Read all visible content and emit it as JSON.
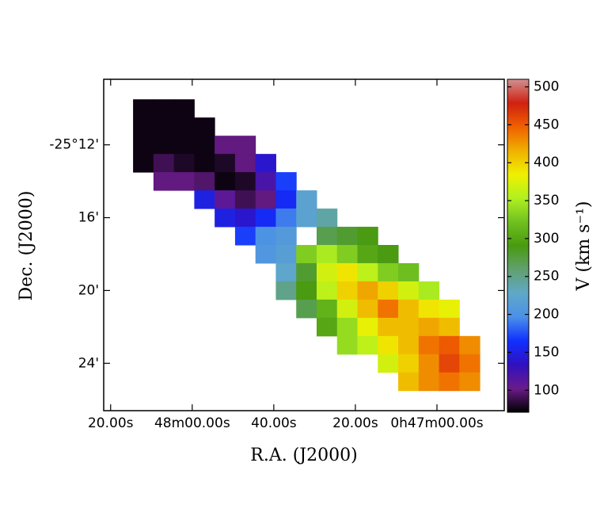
{
  "chart_data": {
    "type": "heatmap",
    "xlabel": "R.A. (J2000)",
    "ylabel": "Dec. (J2000)",
    "colorbar_label": "V (km s⁻¹)",
    "x": [
      72,
      67,
      62,
      57,
      52,
      47,
      42,
      37,
      32,
      27,
      22,
      17,
      12,
      7,
      2,
      -3,
      -8
    ],
    "y": [
      10,
      11,
      12,
      13,
      14,
      15,
      16,
      17,
      18,
      19,
      20,
      21,
      22,
      23,
      24,
      25
    ],
    "z": [
      [
        75,
        75,
        75,
        null,
        null,
        null,
        null,
        null,
        null,
        null,
        null,
        null,
        null,
        null,
        null,
        null,
        null
      ],
      [
        75,
        75,
        75,
        75,
        null,
        null,
        null,
        null,
        null,
        null,
        null,
        null,
        null,
        null,
        null,
        null,
        null
      ],
      [
        75,
        75,
        75,
        75,
        100,
        100,
        null,
        null,
        null,
        null,
        null,
        null,
        null,
        null,
        null,
        null,
        null
      ],
      [
        75,
        90,
        80,
        75,
        80,
        100,
        140,
        null,
        null,
        null,
        null,
        null,
        null,
        null,
        null,
        null,
        null
      ],
      [
        null,
        100,
        100,
        95,
        75,
        80,
        120,
        170,
        null,
        null,
        null,
        null,
        null,
        null,
        null,
        null,
        null
      ],
      [
        null,
        null,
        null,
        150,
        110,
        90,
        100,
        160,
        220,
        null,
        null,
        null,
        null,
        null,
        null,
        null,
        null
      ],
      [
        null,
        null,
        null,
        null,
        150,
        140,
        160,
        190,
        220,
        240,
        null,
        null,
        null,
        null,
        null,
        null,
        null
      ],
      [
        null,
        null,
        null,
        null,
        null,
        170,
        200,
        210,
        null,
        270,
        280,
        290,
        null,
        null,
        null,
        null,
        null
      ],
      [
        null,
        null,
        null,
        null,
        null,
        null,
        205,
        215,
        330,
        350,
        330,
        300,
        290,
        null,
        null,
        null,
        null
      ],
      [
        null,
        null,
        null,
        null,
        null,
        null,
        null,
        225,
        280,
        370,
        390,
        360,
        330,
        320,
        null,
        null,
        null
      ],
      [
        null,
        null,
        null,
        null,
        null,
        null,
        null,
        250,
        290,
        360,
        400,
        420,
        400,
        370,
        350,
        null,
        null
      ],
      [
        null,
        null,
        null,
        null,
        null,
        null,
        null,
        null,
        270,
        310,
        370,
        410,
        440,
        410,
        390,
        380,
        null
      ],
      [
        null,
        null,
        null,
        null,
        null,
        null,
        null,
        null,
        null,
        300,
        340,
        380,
        410,
        410,
        420,
        410,
        null
      ],
      [
        null,
        null,
        null,
        null,
        null,
        null,
        null,
        null,
        null,
        null,
        340,
        360,
        390,
        410,
        440,
        450,
        430
      ],
      [
        null,
        null,
        null,
        null,
        null,
        null,
        null,
        null,
        null,
        null,
        null,
        null,
        370,
        400,
        430,
        460,
        440
      ],
      [
        null,
        null,
        null,
        null,
        null,
        null,
        null,
        null,
        null,
        null,
        null,
        null,
        null,
        410,
        430,
        440,
        430
      ]
    ],
    "xlim": [
      81.7,
      -16.5
    ],
    "ylim": [
      26.6,
      8.4
    ],
    "xticks": [
      {
        "value": 80,
        "label": "20.00s"
      },
      {
        "value": 60,
        "label": "48m00.00s"
      },
      {
        "value": 40,
        "label": "40.00s"
      },
      {
        "value": 20,
        "label": "20.00s"
      },
      {
        "value": 0,
        "label": "0h47m00.00s"
      }
    ],
    "yticks": [
      {
        "value": 12,
        "label": "-25°12'"
      },
      {
        "value": 16,
        "label": "16'"
      },
      {
        "value": 20,
        "label": "20'"
      },
      {
        "value": 24,
        "label": "24'"
      }
    ],
    "clim": [
      71,
      510
    ],
    "cticks": [
      100,
      150,
      200,
      250,
      300,
      350,
      400,
      450,
      500
    ],
    "colormap": [
      "#000000",
      "#6a1b8a",
      "#3010c0",
      "#1030ff",
      "#4a90e8",
      "#60a8c8",
      "#60a070",
      "#4a9a10",
      "#70c020",
      "#b0f020",
      "#f0f000",
      "#f0b000",
      "#f06000",
      "#d02010",
      "#d09090"
    ]
  }
}
